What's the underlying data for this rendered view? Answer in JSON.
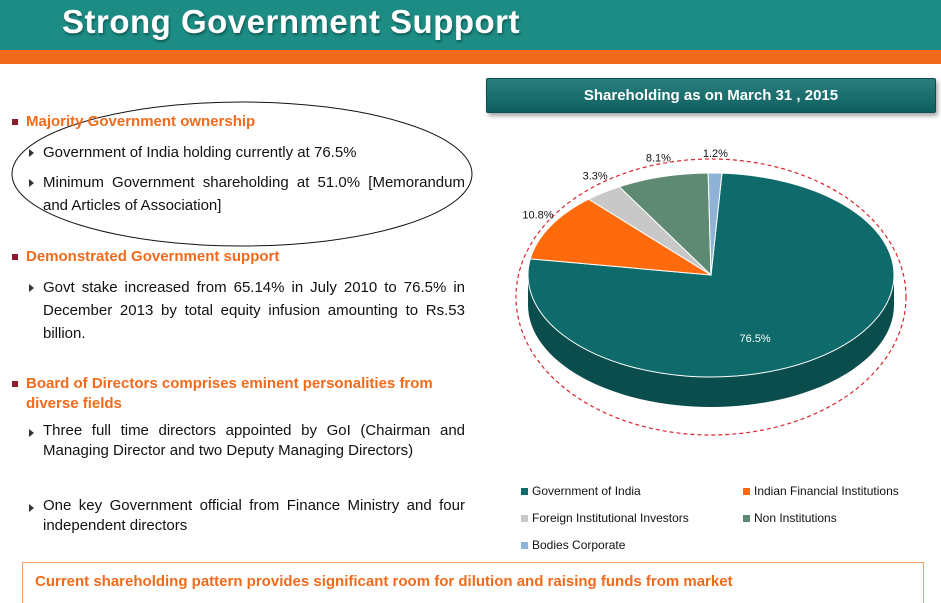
{
  "header": {
    "title": "Strong Government Support"
  },
  "colors": {
    "teal": "#1c8c84",
    "orange": "#f26a1b",
    "pie_govt": "#0f6b6b",
    "pie_fin": "#ff6a0d",
    "pie_fii": "#c8c8c8",
    "pie_noninst": "#5e8a73",
    "pie_bodies": "#8fb3d6"
  },
  "sections": [
    {
      "title": "Majority Government ownership",
      "points": [
        "Government of India holding currently at 76.5%",
        "Minimum Government shareholding at 51.0% [Memorandum and Articles of Association]"
      ]
    },
    {
      "title": "Demonstrated Government support",
      "points": [
        "Govt stake increased from 65.14% in July 2010 to 76.5% in December 2013 by total equity infusion amounting to Rs.53 billion."
      ]
    },
    {
      "title": "Board of Directors comprises eminent personalities from diverse fields",
      "points": [
        "Three full time directors appointed by GoI (Chairman and Managing Director and two Deputy Managing Directors)",
        "One key Government official from Finance Ministry and four independent directors"
      ]
    }
  ],
  "footer": {
    "text": "Current shareholding pattern provides significant room for dilution and raising funds from market"
  },
  "chart_data": {
    "type": "pie",
    "title": "Shareholding as on March 31 , 2015",
    "categories": [
      "Government of India",
      "Indian Financial Institutions",
      "Foreign Institutional Investors",
      "Non Institutions",
      "Bodies Corporate"
    ],
    "values": [
      76.5,
      10.8,
      3.3,
      8.1,
      1.2
    ],
    "labels": [
      "76.5%",
      "10.8%",
      "3.3%",
      "8.1%",
      "1.2%"
    ],
    "legend_position": "bottom",
    "style": "3d"
  }
}
